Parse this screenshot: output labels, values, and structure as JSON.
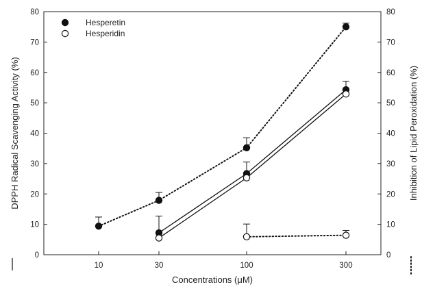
{
  "chart_data": {
    "type": "scatter",
    "xlabel": "Concentrations (μM)",
    "ylabel_left": "DPPH Radical Scavenging Activity (%)",
    "ylabel_right": "Inhibition of Lipid Peroxidation (%)",
    "categories": [
      "10",
      "30",
      "100",
      "300"
    ],
    "xscale": "log",
    "ylim": [
      0,
      80
    ],
    "y_ticks": [
      "0",
      "10",
      "20",
      "30",
      "40",
      "50",
      "60",
      "70",
      "80"
    ],
    "legend": [
      {
        "name": "Hesperetin",
        "marker": "filled-circle"
      },
      {
        "name": "Hesperidin",
        "marker": "open-circle"
      }
    ],
    "legend_position": "top-left",
    "line_styles": [
      {
        "name": "DPPH Radical Scavenging Activity (%)",
        "style": "solid"
      },
      {
        "name": "Inhibition of Lipid Peroxidation (%)",
        "style": "dotted"
      }
    ],
    "series": [
      {
        "compound": "Hesperetin",
        "assay": "DPPH Radical Scavenging Activity (%)",
        "style": "solid",
        "marker": "filled-circle",
        "x": [
          30,
          100,
          300
        ],
        "values": [
          7.2,
          26.7,
          54.3
        ],
        "error": [
          5.5,
          3.8,
          2.8
        ]
      },
      {
        "compound": "Hesperidin",
        "assay": "DPPH Radical Scavenging Activity (%)",
        "style": "solid",
        "marker": "open-circle",
        "x": [
          30,
          100,
          300
        ],
        "values": [
          5.5,
          25.3,
          52.9
        ],
        "error": [
          0,
          0,
          0
        ]
      },
      {
        "compound": "Hesperetin",
        "assay": "Inhibition of Lipid Peroxidation (%)",
        "style": "dotted",
        "marker": "filled-circle",
        "x": [
          10,
          30,
          100,
          300
        ],
        "values": [
          9.4,
          17.9,
          35.2,
          75.0
        ],
        "error": [
          3.0,
          2.6,
          3.3,
          1.2
        ]
      },
      {
        "compound": "Hesperidin",
        "assay": "Inhibition of Lipid Peroxidation (%)",
        "style": "dotted",
        "marker": "open-circle",
        "x": [
          100,
          300
        ],
        "values": [
          5.9,
          6.4
        ],
        "error": [
          4.2,
          1.6
        ]
      }
    ]
  }
}
